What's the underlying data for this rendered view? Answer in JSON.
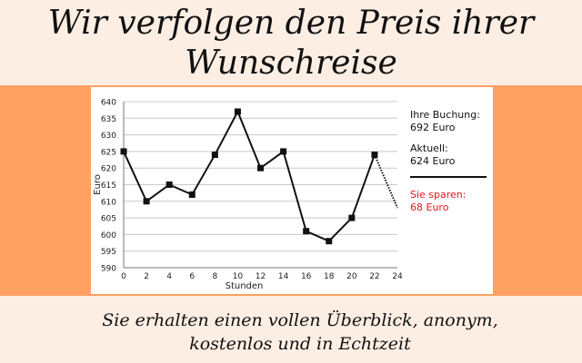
{
  "headline": {
    "line1": "Wir verfolgen den Preis ihrer",
    "line2": "Wunschreise"
  },
  "info_panel": {
    "booking_label": "Ihre Buchung:",
    "booking_value": "692 Euro",
    "current_label": "Aktuell:",
    "current_value": "624 Euro",
    "savings_label": "Sie sparen:",
    "savings_value": "68 Euro"
  },
  "subline": {
    "line1": "Sie erhalten einen vollen Überblick, anonym,",
    "line2": "kostenlos und in Echtzeit"
  },
  "colors": {
    "background": "#fdeee4",
    "band": "#ffa163",
    "savings": "#e8141b"
  },
  "chart_data": {
    "type": "line",
    "xlabel": "Stunden",
    "ylabel": "Euro",
    "xlim": [
      0,
      24
    ],
    "ylim": [
      590,
      640
    ],
    "x_ticks": [
      0,
      2,
      4,
      6,
      8,
      10,
      12,
      14,
      16,
      18,
      20,
      22,
      24
    ],
    "y_ticks": [
      590,
      595,
      600,
      605,
      610,
      615,
      620,
      625,
      630,
      635,
      640
    ],
    "grid": true,
    "series": [
      {
        "x": [
          0,
          2,
          4,
          6,
          8,
          10,
          12,
          14,
          16,
          18,
          20,
          22
        ],
        "y": [
          625,
          610,
          615,
          612,
          624,
          637,
          620,
          625,
          601,
          598,
          605,
          624
        ],
        "marker": "square"
      }
    ],
    "projection": {
      "x": [
        22,
        24
      ],
      "y": [
        624,
        608
      ],
      "style": "dotted"
    }
  }
}
